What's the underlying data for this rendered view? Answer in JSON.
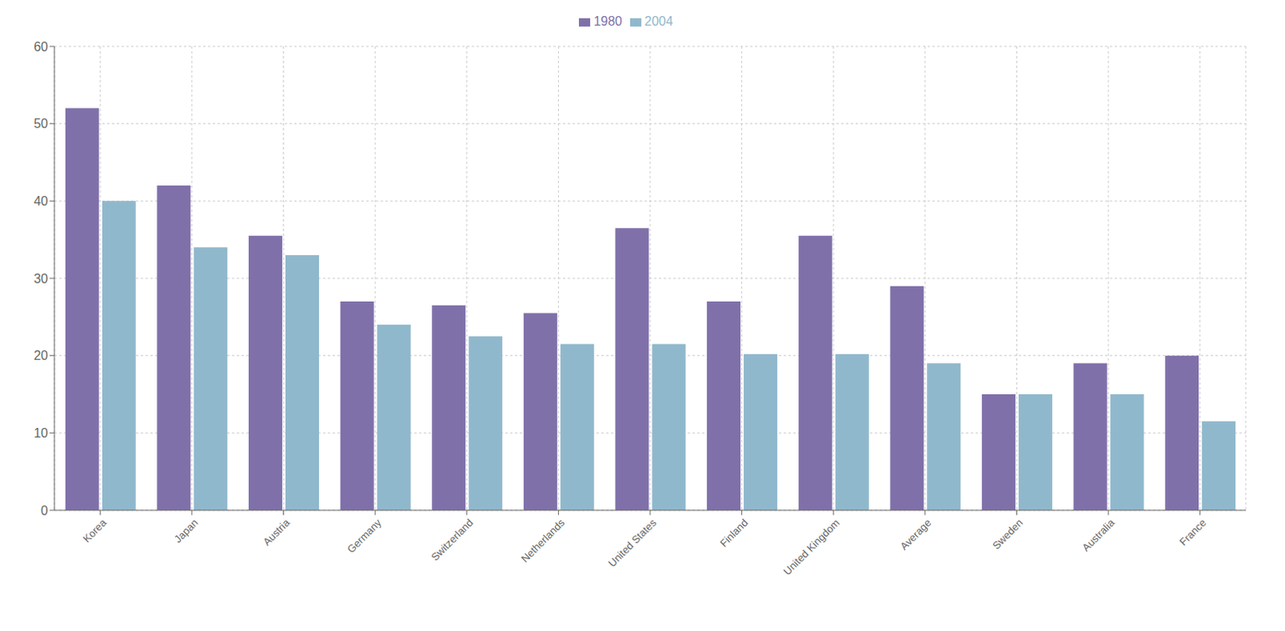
{
  "chart_data": {
    "type": "bar",
    "categories": [
      "Korea",
      "Japan",
      "Austria",
      "Germany",
      "Switzerland",
      "Netherlands",
      "United States",
      "Finland",
      "United Kingdom",
      "Average",
      "Sweden",
      "Australia",
      "France"
    ],
    "series": [
      {
        "name": "1980",
        "color": "#8070aa",
        "values": [
          52,
          42,
          35.5,
          27,
          26.5,
          25.5,
          36.5,
          27,
          35.5,
          29,
          15,
          19,
          20
        ]
      },
      {
        "name": "2004",
        "color": "#90b8cc",
        "values": [
          40,
          34,
          33,
          24,
          22.5,
          21.5,
          21.5,
          20.2,
          20.2,
          19,
          15,
          15,
          11.5
        ]
      }
    ],
    "ylim": [
      0,
      60
    ],
    "yticks": [
      0,
      10,
      20,
      30,
      40,
      50,
      60
    ],
    "grid": true,
    "legend": "top"
  }
}
